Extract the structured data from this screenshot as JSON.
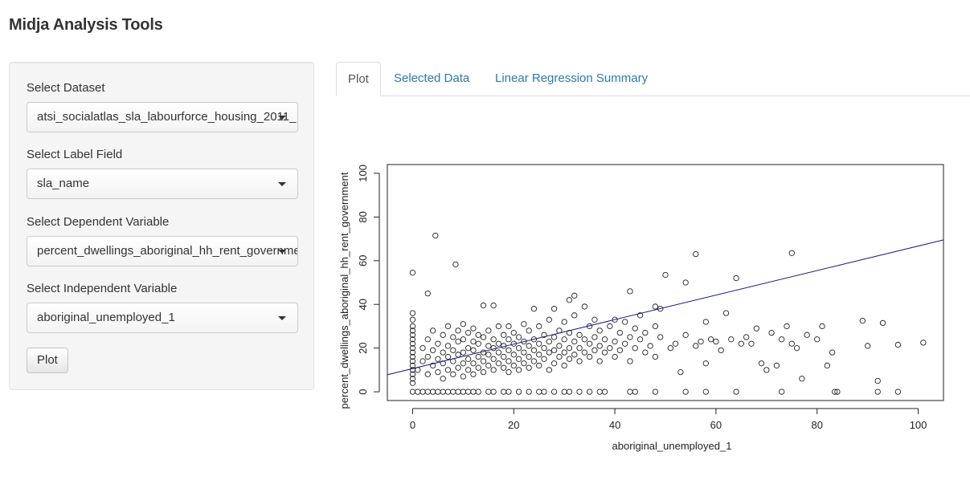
{
  "app": {
    "title": "Midja Analysis Tools"
  },
  "sidebar": {
    "dataset_label": "Select Dataset",
    "dataset_value": "atsi_socialatlas_sla_labourforce_housing_2011_",
    "label_field_label": "Select Label Field",
    "label_field_value": "sla_name",
    "dependent_label": "Select Dependent Variable",
    "dependent_value": "percent_dwellings_aboriginal_hh_rent_government",
    "independent_label": "Select Independent Variable",
    "independent_value": "aboriginal_unemployed_1",
    "plot_button": "Plot"
  },
  "tabs": [
    {
      "label": "Plot",
      "active": true
    },
    {
      "label": "Selected Data",
      "active": false
    },
    {
      "label": "Linear Regression Summary",
      "active": false
    }
  ],
  "chart_data": {
    "type": "scatter",
    "xlabel": "aboriginal_unemployed_1",
    "ylabel": "percent_dwellings_aboriginal_hh_rent_government",
    "xlim": [
      -5,
      105
    ],
    "ylim": [
      -4,
      104
    ],
    "xticks": [
      0,
      20,
      40,
      60,
      80,
      100
    ],
    "yticks": [
      0,
      20,
      40,
      60,
      80,
      100
    ],
    "marker": "open-circle",
    "line_color": "#1a1a8c",
    "regression_line": {
      "x": [
        -5,
        105
      ],
      "y": [
        7.8,
        69.5
      ]
    },
    "points": [
      [
        0,
        54.5
      ],
      [
        4.5,
        71.5
      ],
      [
        8.5,
        58.3
      ],
      [
        3,
        45
      ],
      [
        0,
        36
      ],
      [
        0,
        33
      ],
      [
        0,
        30
      ],
      [
        0,
        28
      ],
      [
        0,
        26
      ],
      [
        0,
        24
      ],
      [
        0,
        22
      ],
      [
        0,
        20
      ],
      [
        0,
        18
      ],
      [
        0,
        16
      ],
      [
        0,
        14
      ],
      [
        0,
        12
      ],
      [
        0,
        10
      ],
      [
        0,
        8
      ],
      [
        0,
        6
      ],
      [
        0,
        4
      ],
      [
        0,
        0
      ],
      [
        1,
        0
      ],
      [
        2,
        0
      ],
      [
        3,
        0
      ],
      [
        4,
        0
      ],
      [
        5,
        0
      ],
      [
        6,
        0
      ],
      [
        7,
        0
      ],
      [
        8,
        0
      ],
      [
        9,
        0
      ],
      [
        10,
        0
      ],
      [
        11,
        0
      ],
      [
        12,
        0
      ],
      [
        13,
        0
      ],
      [
        15,
        0
      ],
      [
        16,
        0
      ],
      [
        18,
        0
      ],
      [
        19,
        0
      ],
      [
        21,
        0
      ],
      [
        23,
        0
      ],
      [
        25,
        0
      ],
      [
        26,
        0
      ],
      [
        28,
        0
      ],
      [
        30,
        0
      ],
      [
        31,
        0
      ],
      [
        33,
        0
      ],
      [
        35,
        0
      ],
      [
        37,
        0
      ],
      [
        38,
        0
      ],
      [
        43,
        0
      ],
      [
        44,
        0
      ],
      [
        48,
        0
      ],
      [
        54,
        0
      ],
      [
        58,
        0
      ],
      [
        64,
        0
      ],
      [
        73,
        0
      ],
      [
        83.5,
        0
      ],
      [
        84,
        0
      ],
      [
        92,
        0
      ],
      [
        96,
        0
      ],
      [
        1,
        10
      ],
      [
        2,
        14
      ],
      [
        2,
        20
      ],
      [
        3,
        8
      ],
      [
        3,
        16
      ],
      [
        3,
        24
      ],
      [
        4,
        12
      ],
      [
        4,
        19
      ],
      [
        4,
        28
      ],
      [
        5,
        9
      ],
      [
        5,
        15
      ],
      [
        5,
        22
      ],
      [
        6,
        6
      ],
      [
        6,
        13
      ],
      [
        6,
        18
      ],
      [
        6,
        26
      ],
      [
        7,
        10
      ],
      [
        7,
        16
      ],
      [
        7,
        21
      ],
      [
        7,
        30
      ],
      [
        8,
        8
      ],
      [
        8,
        14
      ],
      [
        8,
        19
      ],
      [
        8,
        25
      ],
      [
        9,
        11
      ],
      [
        9,
        17
      ],
      [
        9,
        23
      ],
      [
        9,
        28
      ],
      [
        10,
        7
      ],
      [
        10,
        13
      ],
      [
        10,
        18
      ],
      [
        10,
        24
      ],
      [
        10,
        31
      ],
      [
        11,
        10
      ],
      [
        11,
        15
      ],
      [
        11,
        20
      ],
      [
        11,
        27
      ],
      [
        12,
        8
      ],
      [
        12,
        13
      ],
      [
        12,
        19
      ],
      [
        12,
        23
      ],
      [
        12,
        29
      ],
      [
        13,
        11
      ],
      [
        13,
        16
      ],
      [
        13,
        22
      ],
      [
        13,
        26
      ],
      [
        14,
        9
      ],
      [
        14,
        14
      ],
      [
        14,
        18
      ],
      [
        14,
        25
      ],
      [
        14,
        39.5
      ],
      [
        15,
        12
      ],
      [
        15,
        17
      ],
      [
        15,
        21
      ],
      [
        15,
        28
      ],
      [
        16,
        10
      ],
      [
        16,
        15
      ],
      [
        16,
        20
      ],
      [
        16,
        24
      ],
      [
        16,
        39.5
      ],
      [
        17,
        13
      ],
      [
        17,
        18
      ],
      [
        17,
        22
      ],
      [
        17,
        30
      ],
      [
        18,
        11
      ],
      [
        18,
        16
      ],
      [
        18,
        21
      ],
      [
        18,
        26
      ],
      [
        19,
        9
      ],
      [
        19,
        14
      ],
      [
        19,
        19
      ],
      [
        19,
        24
      ],
      [
        19,
        30
      ],
      [
        20,
        12
      ],
      [
        20,
        17
      ],
      [
        20,
        22
      ],
      [
        20,
        27
      ],
      [
        21,
        10
      ],
      [
        21,
        15
      ],
      [
        21,
        20
      ],
      [
        21,
        25
      ],
      [
        22,
        13
      ],
      [
        22,
        18
      ],
      [
        22,
        23
      ],
      [
        22,
        31
      ],
      [
        23,
        11
      ],
      [
        23,
        16
      ],
      [
        23,
        21
      ],
      [
        23,
        28
      ],
      [
        24,
        14
      ],
      [
        24,
        19
      ],
      [
        24,
        24
      ],
      [
        24,
        38
      ],
      [
        25,
        12
      ],
      [
        25,
        17
      ],
      [
        25,
        22
      ],
      [
        25,
        30
      ],
      [
        26,
        15
      ],
      [
        26,
        20
      ],
      [
        26,
        26
      ],
      [
        27,
        10
      ],
      [
        27,
        18
      ],
      [
        27,
        23
      ],
      [
        27,
        33
      ],
      [
        28,
        13
      ],
      [
        28,
        19
      ],
      [
        28,
        25
      ],
      [
        28,
        38
      ],
      [
        29,
        16
      ],
      [
        29,
        21
      ],
      [
        29,
        28
      ],
      [
        30,
        12
      ],
      [
        30,
        18
      ],
      [
        30,
        24
      ],
      [
        30,
        32
      ],
      [
        31,
        15
      ],
      [
        31,
        20
      ],
      [
        31,
        27
      ],
      [
        31,
        42
      ],
      [
        32,
        17
      ],
      [
        32,
        23
      ],
      [
        32,
        35
      ],
      [
        32,
        44
      ],
      [
        33,
        14
      ],
      [
        33,
        20
      ],
      [
        33,
        26
      ],
      [
        34,
        18
      ],
      [
        34,
        24
      ],
      [
        34,
        39
      ],
      [
        35,
        16
      ],
      [
        35,
        22
      ],
      [
        35,
        30
      ],
      [
        36,
        19
      ],
      [
        36,
        25
      ],
      [
        36,
        33
      ],
      [
        37,
        14
      ],
      [
        37,
        21
      ],
      [
        37,
        28
      ],
      [
        38,
        18
      ],
      [
        38,
        24
      ],
      [
        39,
        20
      ],
      [
        39,
        30
      ],
      [
        40,
        16
      ],
      [
        40,
        23
      ],
      [
        40,
        33
      ],
      [
        41,
        19
      ],
      [
        41,
        27
      ],
      [
        42,
        22
      ],
      [
        42,
        32
      ],
      [
        43,
        14
      ],
      [
        43,
        25
      ],
      [
        43,
        46
      ],
      [
        44,
        20
      ],
      [
        44,
        29
      ],
      [
        45,
        24
      ],
      [
        45,
        35
      ],
      [
        46,
        18
      ],
      [
        46,
        27
      ],
      [
        47,
        21
      ],
      [
        48,
        16
      ],
      [
        48,
        30
      ],
      [
        48,
        39
      ],
      [
        49,
        25
      ],
      [
        49,
        38
      ],
      [
        50,
        53.5
      ],
      [
        51,
        20
      ],
      [
        52,
        22
      ],
      [
        53,
        9
      ],
      [
        54,
        50
      ],
      [
        54,
        26
      ],
      [
        56,
        63
      ],
      [
        56,
        21
      ],
      [
        57,
        23
      ],
      [
        58,
        13
      ],
      [
        58,
        32
      ],
      [
        59,
        24
      ],
      [
        60,
        23
      ],
      [
        61,
        19
      ],
      [
        62,
        36
      ],
      [
        63,
        24
      ],
      [
        64,
        52
      ],
      [
        65,
        22
      ],
      [
        66,
        25
      ],
      [
        67,
        22
      ],
      [
        68,
        29
      ],
      [
        69,
        13
      ],
      [
        70,
        10
      ],
      [
        71,
        27
      ],
      [
        72,
        12
      ],
      [
        73,
        24
      ],
      [
        74,
        30
      ],
      [
        75,
        63.5
      ],
      [
        75,
        22
      ],
      [
        76,
        20
      ],
      [
        77,
        6
      ],
      [
        78,
        26
      ],
      [
        80,
        24
      ],
      [
        81,
        30
      ],
      [
        82,
        12
      ],
      [
        83,
        18
      ],
      [
        89,
        32.5
      ],
      [
        90,
        21
      ],
      [
        92,
        5
      ],
      [
        93,
        31.5
      ],
      [
        96,
        21.5
      ],
      [
        101,
        22.5
      ]
    ]
  }
}
